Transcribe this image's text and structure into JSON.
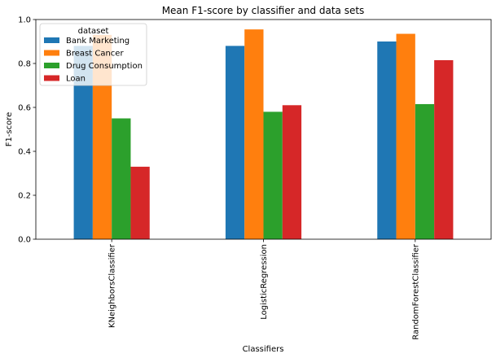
{
  "chart_data": {
    "type": "bar",
    "title": "Mean F1-score by classifier and data sets",
    "xlabel": "Classifiers",
    "ylabel": "F1-score",
    "categories": [
      "KNeighborsClassifier",
      "LogisticRegression",
      "RandomForestClassifier"
    ],
    "ylim": [
      0,
      1.0
    ],
    "yticks": [
      0.0,
      0.2,
      0.4,
      0.6,
      0.8,
      1.0
    ],
    "ytick_labels": [
      "0.0",
      "0.2",
      "0.4",
      "0.6",
      "0.8",
      "1.0"
    ],
    "grid": false,
    "legend": {
      "title": "dataset",
      "position": "top-left"
    },
    "series": [
      {
        "name": "Bank Marketing",
        "color": "#1f77b4",
        "values": [
          0.88,
          0.88,
          0.9
        ]
      },
      {
        "name": "Breast Cancer",
        "color": "#ff7f0e",
        "values": [
          0.93,
          0.955,
          0.935
        ]
      },
      {
        "name": "Drug Consumption",
        "color": "#2ca02c",
        "values": [
          0.55,
          0.58,
          0.615
        ]
      },
      {
        "name": "Loan",
        "color": "#d62728",
        "values": [
          0.33,
          0.61,
          0.815
        ]
      }
    ]
  }
}
